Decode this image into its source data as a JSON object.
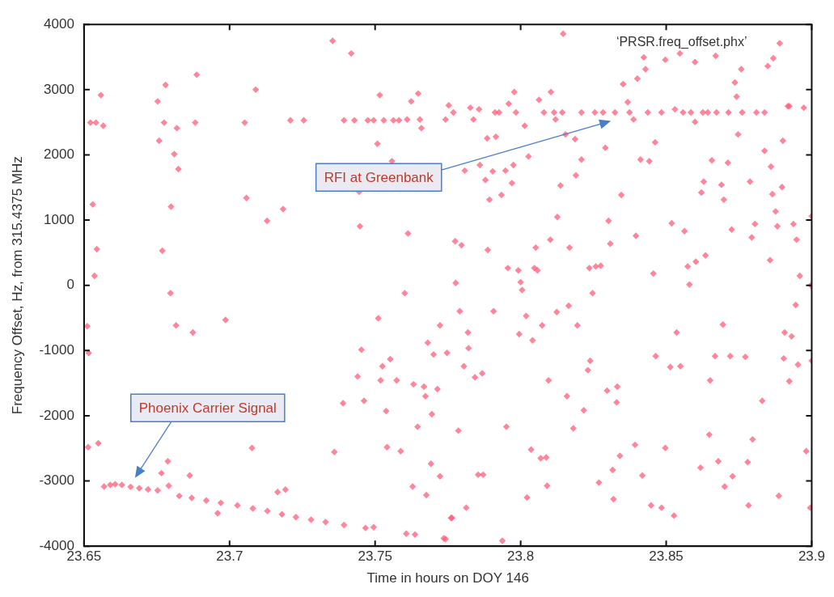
{
  "chart_data": {
    "type": "scatter",
    "xlabel": "Time in hours on DOY 146",
    "ylabel": "Frequency Offset, Hz, from 315.4375 MHz",
    "xlim": [
      23.65,
      23.9
    ],
    "xticks": [
      23.65,
      23.7,
      23.75,
      23.8,
      23.85,
      23.9
    ],
    "ylim": [
      -4000,
      4000
    ],
    "yticks": [
      -4000,
      -3000,
      -2000,
      -1000,
      0,
      1000,
      2000,
      3000,
      4000
    ],
    "grid": false,
    "legend": false,
    "marker": "diamond",
    "annotations": [
      "RFI at Greenbank",
      "Phoenix Carrier Signal",
      "‘PRSR.freq_offset.phx’"
    ],
    "series": [
      {
        "color": "#ff5c7a",
        "x": [
          23.6569,
          23.659,
          23.6607,
          23.663,
          23.666,
          23.669,
          23.672,
          23.6753,
          23.6827,
          23.687,
          23.692,
          23.697,
          23.7027,
          23.708,
          23.713,
          23.718,
          23.7228,
          23.728,
          23.733,
          23.7393,
          23.7467,
          23.7495,
          23.7354,
          23.7418,
          23.6887,
          23.709,
          23.6558,
          23.678,
          23.6753,
          23.7516,
          23.7648,
          23.7624,
          23.7753,
          23.6522,
          23.6541,
          23.6566,
          23.6775,
          23.6819,
          23.6882,
          23.7052,
          23.7209,
          23.7255,
          23.7393,
          23.7429,
          23.7475,
          23.7495,
          23.753,
          23.7563,
          23.7582,
          23.761,
          23.7654,
          23.7659,
          23.7742,
          23.6758,
          23.681,
          23.6824,
          23.7508,
          23.7558,
          23.653,
          23.7058,
          23.6799,
          23.7129,
          23.7184,
          23.7448,
          23.7613,
          23.6544,
          23.6769,
          23.6536,
          23.7445,
          23.8146,
          23.889,
          23.8423,
          23.8547,
          23.8497,
          23.8599,
          23.867,
          23.8758,
          23.8868,
          23.8849,
          23.8429,
          23.8401,
          23.8352,
          23.8736,
          23.8742,
          23.7978,
          23.8104,
          23.7827,
          23.7857,
          23.7959,
          23.8063,
          23.8368,
          23.8923,
          23.8973,
          23.7769,
          23.7838,
          23.7912,
          23.7926,
          23.7984,
          23.808,
          23.8115,
          23.812,
          23.8143,
          23.8209,
          23.8255,
          23.8283,
          23.8324,
          23.8374,
          23.8388,
          23.8437,
          23.8484,
          23.853,
          23.8558,
          23.8585,
          23.8599,
          23.8626,
          23.8643,
          23.8673,
          23.8714,
          23.8761,
          23.881,
          23.8838,
          23.8918,
          23.8014,
          23.8154,
          23.8187,
          23.7885,
          23.7915,
          23.8291,
          23.8462,
          23.8747,
          23.8901,
          23.8838,
          23.8657,
          23.8712,
          23.8412,
          23.8442,
          23.8209,
          23.8027,
          23.786,
          23.7808,
          23.7904,
          23.7948,
          23.7975,
          23.7879,
          23.797,
          23.886,
          23.819,
          23.8137,
          23.8629,
          23.869,
          23.8788,
          23.8898,
          23.8621,
          23.8698,
          23.8865,
          23.8346,
          23.7893,
          23.7934,
          23.8876,
          23.8126,
          23.8302,
          23.8519,
          23.8563,
          23.8725,
          23.8805,
          23.8882,
          23.8937,
          23.8794,
          23.8948,
          23.8396,
          23.8308,
          23.8102,
          23.8052,
          23.8168,
          23.7775,
          23.7797,
          23.7887,
          23.8635,
          23.8602,
          23.8574,
          23.8857,
          23.8959,
          23.7956,
          23.7992,
          23.8047,
          23.8058,
          23.8236,
          23.8258,
          23.8275,
          23.8456,
          23.7777,
          23.8,
          23.858,
          23.8997,
          23.9,
          23.8005,
          23.8247,
          23.7791,
          23.7907,
          23.8019,
          23.8124,
          23.8165,
          23.8074,
          23.8195,
          23.7819,
          23.7995,
          23.8041,
          23.7821,
          23.7805,
          23.7843,
          23.7868,
          23.8096,
          23.8159,
          23.8217,
          23.8239,
          23.8231,
          23.8297,
          23.8332,
          23.833,
          23.8536,
          23.8695,
          23.8464,
          23.8514,
          23.8549,
          23.8668,
          23.872,
          23.8772,
          23.8651,
          23.883,
          23.8907,
          23.8931,
          23.8945,
          23.8904,
          23.8953,
          23.8923,
          23.9,
          23.7786,
          23.7951,
          23.8181,
          23.8036,
          23.8069,
          23.8088,
          23.8393,
          23.8497,
          23.8341,
          23.8648,
          23.8797,
          23.8981,
          23.8618,
          23.8679,
          23.878,
          23.8728,
          23.8701,
          23.7854,
          23.7871,
          23.8316,
          23.8418,
          23.8269,
          23.8091,
          23.8022,
          23.8319,
          23.8887,
          23.7813,
          23.7764,
          23.8448,
          23.8484,
          23.8527,
          23.8783,
          23.8995,
          23.7937,
          23.7742,
          23.6797,
          23.6986,
          23.6816,
          23.6874,
          23.6511,
          23.6516,
          23.7602,
          23.7511,
          23.7723,
          23.7453,
          23.7681,
          23.7701,
          23.7747,
          23.7525,
          23.7552,
          23.744,
          23.7519,
          23.7574,
          23.7632,
          23.7668,
          23.7714,
          23.7673,
          23.739,
          23.7462,
          23.7538,
          23.7695,
          23.7646,
          23.7541,
          23.7588,
          23.736,
          23.7077,
          23.6514,
          23.6549,
          23.6788,
          23.6766,
          23.6863,
          23.6791,
          23.6959,
          23.7165,
          23.7192,
          23.7692,
          23.7723,
          23.7629,
          23.7676,
          23.7761,
          23.7607,
          23.7637,
          23.7736
        ],
        "values": [
          -3085,
          -3060,
          -3050,
          -3060,
          -3090,
          -3110,
          -3130,
          -3145,
          -3230,
          -3260,
          -3300,
          -3335,
          -3374,
          -3420,
          -3460,
          -3510,
          -3555,
          -3595,
          -3630,
          -3675,
          -3720,
          -3710,
          3748,
          3555,
          3229,
          3000,
          2916,
          3073,
          2820,
          2916,
          2940,
          2820,
          2760,
          2494,
          2494,
          2446,
          2494,
          2410,
          2494,
          2494,
          2530,
          2530,
          2530,
          2530,
          2530,
          2530,
          2530,
          2530,
          2530,
          2542,
          2542,
          2410,
          2542,
          2217,
          2012,
          1783,
          2169,
          1904,
          1241,
          1338,
          1205,
          988,
          1169,
          904,
          795,
          554,
          530,
          145,
          1434,
          3856,
          3711,
          3495,
          3555,
          3458,
          3422,
          3519,
          3314,
          3482,
          3362,
          3314,
          3169,
          3085,
          3109,
          2892,
          2964,
          2964,
          2723,
          2699,
          2784,
          2844,
          2808,
          2747,
          2723,
          2651,
          2543,
          2651,
          2651,
          2651,
          2651,
          2651,
          2543,
          2651,
          2651,
          2651,
          2651,
          2651,
          2651,
          2543,
          2651,
          2651,
          2699,
          2651,
          2651,
          2506,
          2651,
          2651,
          2651,
          2651,
          2651,
          2651,
          2651,
          2747,
          2446,
          2314,
          2241,
          2253,
          2277,
          2109,
          2193,
          2314,
          2217,
          2061,
          1916,
          1880,
          1928,
          1904,
          1928,
          1976,
          1844,
          1759,
          1747,
          1759,
          1844,
          1615,
          1567,
          1820,
          1687,
          1530,
          1591,
          1542,
          1591,
          1506,
          1422,
          1313,
          1398,
          1386,
          1313,
          1386,
          1133,
          1048,
          988,
          952,
          831,
          856,
          940,
          904,
          940,
          735,
          699,
          759,
          639,
          699,
          578,
          578,
          675,
          615,
          542,
          458,
          362,
          289,
          386,
          145,
          265,
          229,
          265,
          229,
          265,
          289,
          301,
          181,
          36,
          48,
          12,
          0,
          1060,
          -72,
          -120,
          -398,
          -398,
          -470,
          -410,
          -313,
          -615,
          -615,
          -723,
          -747,
          -844,
          -964,
          -1241,
          -1410,
          -1350,
          -1458,
          -1699,
          -1916,
          -1157,
          -1301,
          -1615,
          -1554,
          -1795,
          -723,
          -603,
          -1085,
          -1253,
          -1241,
          -1085,
          -1085,
          -1097,
          -1458,
          -1771,
          -723,
          -783,
          -301,
          -1121,
          -1217,
          -1470,
          -1157,
          -2229,
          -2169,
          -2193,
          -2518,
          -2651,
          -2639,
          -2446,
          -2494,
          -2615,
          -2290,
          -2362,
          -2543,
          -2796,
          -2699,
          -2711,
          -2928,
          -3085,
          -2904,
          -2904,
          -2832,
          -2916,
          -3025,
          -3073,
          -3254,
          -3278,
          -3229,
          -3410,
          -3567,
          -3374,
          -3410,
          -3531,
          -3374,
          -3410,
          -3916,
          -3892,
          -120,
          -530,
          -615,
          -723,
          -627,
          -1036,
          -120,
          -506,
          -615,
          -988,
          -880,
          -1060,
          -1036,
          -1241,
          -1133,
          -1398,
          -1458,
          -1458,
          -1518,
          -1554,
          -1591,
          -1699,
          -1808,
          -1771,
          -1928,
          -1976,
          -2169,
          -2482,
          -2543,
          -2555,
          -2494,
          -2482,
          -2422,
          -2699,
          -2880,
          -2916,
          -3073,
          -3495,
          -3169,
          -3133,
          -2735,
          -2928,
          -3085,
          -3217,
          -3567,
          -3808,
          -3820,
          -3880
        ]
      }
    ]
  }
}
